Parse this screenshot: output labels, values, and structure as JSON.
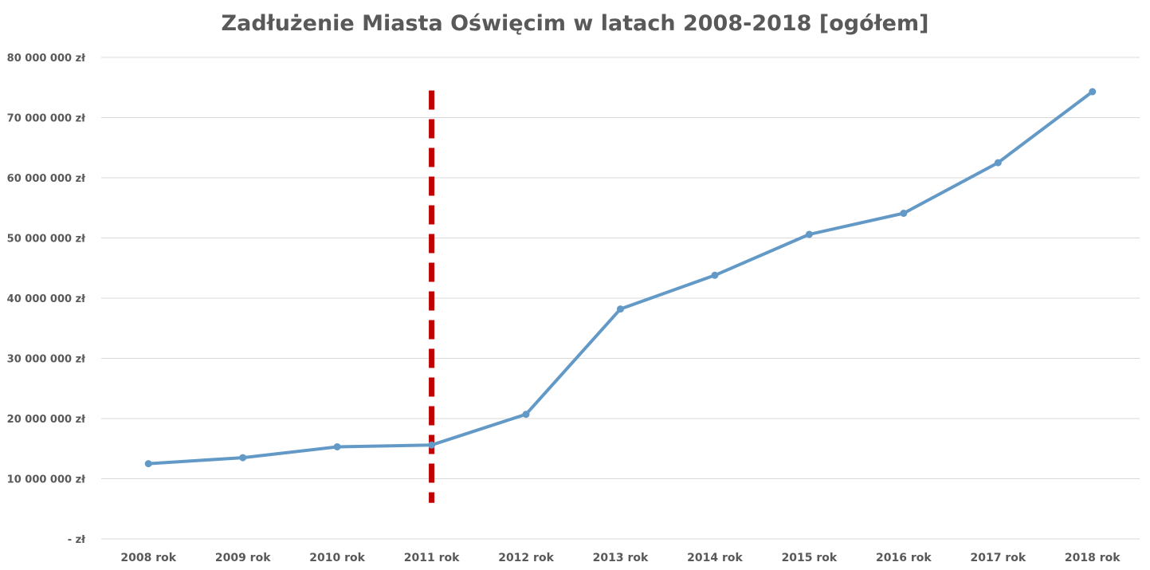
{
  "chart_data": {
    "type": "line",
    "title": "Zadłużenie Miasta Oświęcim w latach 2008-2018 [ogółem]",
    "xlabel": "",
    "ylabel": "",
    "categories": [
      "2008 rok",
      "2009 rok",
      "2010 rok",
      "2011 rok",
      "2012 rok",
      "2013 rok",
      "2014 rok",
      "2015 rok",
      "2016 rok",
      "2017 rok",
      "2018 rok"
    ],
    "series": [
      {
        "values": [
          12500000,
          13500000,
          15300000,
          15600000,
          20700000,
          38200000,
          43800000,
          50600000,
          54100000,
          62500000,
          74300000
        ],
        "color": "#6399c6"
      }
    ],
    "ylim": [
      0,
      80000000
    ],
    "yticks": [
      0,
      10000000,
      20000000,
      30000000,
      40000000,
      50000000,
      60000000,
      70000000,
      80000000
    ],
    "ytick_labels": [
      "- zł",
      "10 000 000 zł",
      "20 000 000 zł",
      "30 000 000 zł",
      "40 000 000 zł",
      "50 000 000 zł",
      "60 000 000 zł",
      "70 000 000 zł",
      "80 000 000 zł"
    ],
    "grid": true,
    "gridline_color": "#d9d9d9",
    "annotation": {
      "type": "vertical-dashed-line",
      "at_category": "2011 rok",
      "color": "#c00000",
      "y_from": 6000000,
      "y_to": 74500000
    },
    "legend": "none"
  }
}
